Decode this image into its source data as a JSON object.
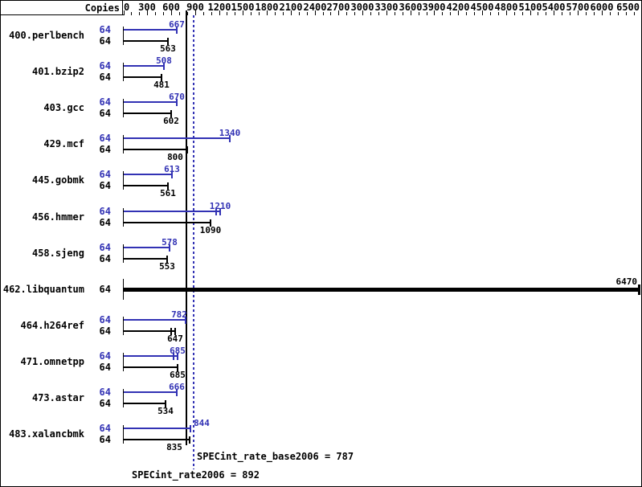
{
  "header": {
    "copies_label": "Copies"
  },
  "axis": {
    "tick_labels": [
      "0",
      "300",
      "600",
      "900",
      "1200",
      "1500",
      "1800",
      "2100",
      "2400",
      "2700",
      "3000",
      "3300",
      "3600",
      "3900",
      "4200",
      "4500",
      "4800",
      "5100",
      "5400",
      "5700",
      "6000",
      "6500"
    ],
    "major_step": 300,
    "minor_step": 100,
    "min": 0,
    "max": 6500
  },
  "chart_data": {
    "type": "bar",
    "orientation": "horizontal",
    "title": "",
    "xlabel": "",
    "ylabel": "Copies",
    "xlim": [
      0,
      6500
    ],
    "grid": false,
    "legend_position": "none",
    "series_names": [
      "SPECint_rate2006 (peak, blue)",
      "SPECint_rate_base2006 (base, black)"
    ],
    "benchmarks": [
      {
        "name": "400.perlbench",
        "copies": 64,
        "peak": 667,
        "base": 563
      },
      {
        "name": "401.bzip2",
        "copies": 64,
        "peak": 508,
        "base": 481
      },
      {
        "name": "403.gcc",
        "copies": 64,
        "peak": 670,
        "base": 602
      },
      {
        "name": "429.mcf",
        "copies": 64,
        "peak": 1340,
        "base": 800
      },
      {
        "name": "445.gobmk",
        "copies": 64,
        "peak": 613,
        "base": 561
      },
      {
        "name": "456.hmmer",
        "copies": 64,
        "peak": 1210,
        "base": 1090,
        "spread_markers": {
          "peak": true
        }
      },
      {
        "name": "458.sjeng",
        "copies": 64,
        "peak": 578,
        "base": 553
      },
      {
        "name": "462.libquantum",
        "copies": 64,
        "peak": null,
        "base": 6470,
        "bold_bar": true
      },
      {
        "name": "464.h264ref",
        "copies": 64,
        "peak": 782,
        "base": 647,
        "spread_markers": {
          "base": true
        }
      },
      {
        "name": "471.omnetpp",
        "copies": 64,
        "peak": 685,
        "base": 685,
        "spread_markers": {
          "peak": true
        }
      },
      {
        "name": "473.astar",
        "copies": 64,
        "peak": 666,
        "base": 534
      },
      {
        "name": "483.xalancbmk",
        "copies": 64,
        "peak": 844,
        "base": 835
      }
    ],
    "reference_lines": [
      {
        "label": "SPECint_rate_base2006 = 787",
        "value": 787,
        "style": "solid",
        "color": "#000000"
      },
      {
        "label": "SPECint_rate2006 = 892",
        "value": 892,
        "style": "dotted",
        "color": "#3232b4"
      }
    ]
  },
  "footer": {
    "base_label": "SPECint_rate_base2006 = 787",
    "peak_label": "SPECint_rate2006 = 892"
  },
  "colors": {
    "peak_blue": "#3232b4",
    "base_black": "#000000",
    "background": "#ffffff"
  }
}
